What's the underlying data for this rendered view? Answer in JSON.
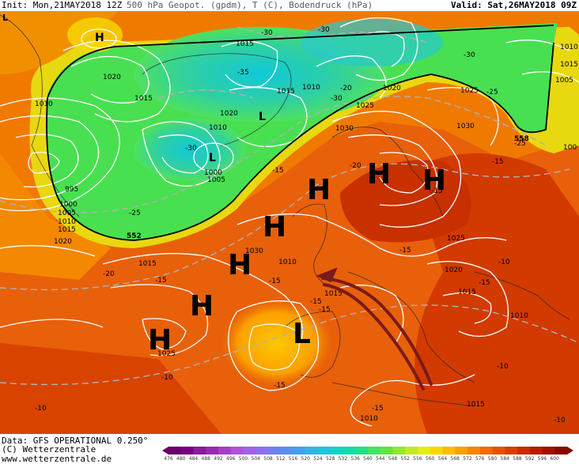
{
  "header": {
    "init": "Init: Mon,21MAY2018 12Z",
    "field": "500 hPa Geopot. (gpdm), T (C), Bodendruck (hPa)",
    "valid": "Valid: Sat,26MAY2018 09Z"
  },
  "footer": {
    "data_source": "Data: GFS OPERATIONAL 0.250°",
    "copyright": "(C) Wetterzentrale",
    "url": "www.wetterzentrale.de"
  },
  "colorbar": {
    "labels": [
      "476",
      "480",
      "484",
      "488",
      "492",
      "496",
      "500",
      "504",
      "508",
      "512",
      "516",
      "520",
      "524",
      "528",
      "532",
      "536",
      "540",
      "544",
      "548",
      "552",
      "556",
      "560",
      "564",
      "568",
      "572",
      "576",
      "580",
      "584",
      "588",
      "592",
      "596",
      "600"
    ],
    "colors": [
      "#6a006a",
      "#7a0080",
      "#8a1a9a",
      "#9a2ab0",
      "#a83cc4",
      "#b050d8",
      "#a060e8",
      "#8a70f0",
      "#7080f4",
      "#5890f0",
      "#40a0ec",
      "#30b4e4",
      "#20c4dc",
      "#10d4c8",
      "#10dca8",
      "#20e088",
      "#40e460",
      "#60e440",
      "#90e830",
      "#c0ec20",
      "#e8ec10",
      "#f8d800",
      "#fcbc00",
      "#fca000",
      "#f88400",
      "#f06c00",
      "#e45400",
      "#d83e00",
      "#c82c00",
      "#b81c00",
      "#a01000",
      "#880800"
    ]
  },
  "pressure_centers": [
    {
      "type": "H",
      "label": "H"
    },
    {
      "type": "H",
      "label": "H"
    },
    {
      "type": "H",
      "label": "H"
    },
    {
      "type": "H",
      "label": "H"
    },
    {
      "type": "H",
      "label": "H"
    },
    {
      "type": "H",
      "label": "H"
    },
    {
      "type": "H",
      "label": "H"
    },
    {
      "type": "H",
      "label": "H"
    },
    {
      "type": "L",
      "label": "L"
    },
    {
      "type": "L",
      "label": "L"
    },
    {
      "type": "L",
      "label": "L"
    },
    {
      "type": "L",
      "label": "L"
    }
  ],
  "isobar_labels": [
    "1015",
    "1020",
    "1010",
    "1015",
    "1010",
    "1020",
    "1015",
    "1010",
    "1020",
    "1030",
    "1025",
    "1025",
    "1030",
    "1000",
    "1005",
    "995",
    "1000",
    "1005",
    "1010",
    "1015",
    "1020",
    "1015",
    "1030",
    "1025",
    "1020",
    "1015",
    "1015",
    "1010",
    "1015",
    "1025",
    "1010",
    "1010",
    "1015",
    "1005",
    "100",
    "1010"
  ],
  "temperature_labels": [
    "-30",
    "-35",
    "-30",
    "-30",
    "-25",
    "-30",
    "-30",
    "-25",
    "-20",
    "-25",
    "-15",
    "-15",
    "-20",
    "-15",
    "-15",
    "-15",
    "-20",
    "-15",
    "-15",
    "-15",
    "-10",
    "-15",
    "-10",
    "-10",
    "-15",
    "-15",
    "-10",
    "-10"
  ],
  "contour_labels": [
    "552",
    "552",
    "558"
  ],
  "colors": {
    "cold_core": "#20c4dc",
    "green": "#40e460",
    "yellow": "#e8ec10",
    "orange": "#fca000",
    "red_orange": "#e45400",
    "deep_red": "#c82c00",
    "arrow": "#7a1a1a"
  }
}
